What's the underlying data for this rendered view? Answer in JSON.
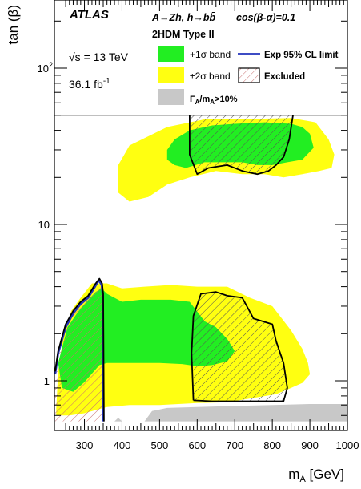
{
  "colors": {
    "band1": "#22ee22",
    "band2": "#ffff11",
    "width_region": "#c8c8c8",
    "expected_line": "#2233bb",
    "observed_line": "#000000",
    "excluded_hatch": "#c87070"
  },
  "chart_data": {
    "type": "area",
    "experiment": "ATLAS",
    "process": "A→Zh, h→bb̄",
    "process_bar": "b̄",
    "condition": "cos(β-α)=0.1",
    "model": "2HDM Type II",
    "energy": "√s = 13 TeV",
    "luminosity": "36.1 fb",
    "luminosity_exp": "-1",
    "xlabel": "m",
    "xlabel_sub": "A",
    "xlabel_unit": " [GeV]",
    "ylabel": "tan (β)",
    "xlim": [
      220,
      1000
    ],
    "ylim": [
      0.55,
      500
    ],
    "yscale": "log",
    "xticks": [
      300,
      400,
      500,
      600,
      700,
      800,
      900,
      1000
    ],
    "yticks": [
      {
        "value": 1,
        "label": "1"
      },
      {
        "value": 10,
        "label": "10"
      },
      {
        "value": 100,
        "label": "10",
        "exp": "2"
      }
    ],
    "legend": [
      {
        "key": "band1",
        "label": "+1σ band"
      },
      {
        "key": "band2",
        "label": "±2σ band"
      },
      {
        "key": "expected",
        "label": "Exp 95% CL limit"
      },
      {
        "key": "excluded",
        "label": "Excluded"
      },
      {
        "key": "width",
        "label": "Γ",
        "sub1": "A",
        "mid": "/m",
        "sub2": "A",
        "tail": ">10%"
      }
    ],
    "legend_box_top_tanb": 50,
    "series": [
      {
        "key": "band2",
        "regions": [
          [
            [
              225,
              0.66
            ],
            [
              230,
              1.15
            ],
            [
              245,
              2.0
            ],
            [
              265,
              2.8
            ],
            [
              290,
              3.4
            ],
            [
              320,
              4.2
            ],
            [
              345,
              4.2
            ],
            [
              360,
              4.2
            ],
            [
              400,
              3.9
            ],
            [
              460,
              4.0
            ],
            [
              530,
              4.1
            ],
            [
              600,
              4.0
            ],
            [
              680,
              4.0
            ],
            [
              740,
              3.4
            ],
            [
              800,
              3.0
            ],
            [
              850,
              2.1
            ],
            [
              880,
              1.6
            ],
            [
              895,
              1.3
            ],
            [
              900,
              1.1
            ],
            [
              880,
              0.97
            ],
            [
              850,
              0.9
            ],
            [
              810,
              0.82
            ],
            [
              740,
              0.77
            ],
            [
              680,
              0.73
            ],
            [
              600,
              0.72
            ],
            [
              500,
              0.7
            ],
            [
              420,
              0.7
            ],
            [
              360,
              0.68
            ],
            [
              340,
              0.66
            ],
            [
              300,
              0.62
            ],
            [
              260,
              0.6
            ],
            [
              225,
              0.6
            ]
          ],
          [
            [
              390,
              24
            ],
            [
              420,
              32
            ],
            [
              520,
              42
            ],
            [
              620,
              47
            ],
            [
              700,
              47
            ],
            [
              850,
              48
            ],
            [
              915,
              45
            ],
            [
              950,
              35
            ],
            [
              965,
              28
            ],
            [
              958,
              23
            ],
            [
              925,
              22
            ],
            [
              880,
              21
            ],
            [
              830,
              20
            ],
            [
              780,
              21
            ],
            [
              720,
              21
            ],
            [
              650,
              22
            ],
            [
              580,
              20
            ],
            [
              520,
              18
            ],
            [
              470,
              15
            ],
            [
              420,
              14
            ],
            [
              390,
              16
            ]
          ]
        ]
      },
      {
        "key": "band1",
        "regions": [
          [
            [
              230,
              1.3
            ],
            [
              255,
              2.2
            ],
            [
              280,
              2.7
            ],
            [
              305,
              3.2
            ],
            [
              330,
              3.7
            ],
            [
              345,
              3.9
            ],
            [
              360,
              3.6
            ],
            [
              400,
              3.2
            ],
            [
              450,
              3.3
            ],
            [
              530,
              3.3
            ],
            [
              580,
              3.2
            ],
            [
              620,
              2.4
            ],
            [
              650,
              2.2
            ],
            [
              680,
              1.85
            ],
            [
              700,
              1.55
            ],
            [
              680,
              1.33
            ],
            [
              640,
              1.26
            ],
            [
              600,
              1.24
            ],
            [
              560,
              1.28
            ],
            [
              500,
              1.3
            ],
            [
              420,
              1.3
            ],
            [
              360,
              1.3
            ],
            [
              340,
              1.26
            ],
            [
              300,
              0.98
            ],
            [
              270,
              0.85
            ],
            [
              240,
              0.9
            ]
          ],
          [
            [
              520,
              30
            ],
            [
              540,
              35
            ],
            [
              580,
              40
            ],
            [
              640,
              43
            ],
            [
              700,
              44
            ],
            [
              780,
              45
            ],
            [
              850,
              44
            ],
            [
              880,
              42
            ],
            [
              900,
              38
            ],
            [
              910,
              31
            ],
            [
              880,
              26
            ],
            [
              840,
              25
            ],
            [
              800,
              24
            ],
            [
              760,
              24
            ],
            [
              720,
              25
            ],
            [
              680,
              25
            ],
            [
              620,
              25
            ],
            [
              570,
              23
            ],
            [
              540,
              24
            ],
            [
              520,
              26
            ]
          ]
        ]
      },
      {
        "key": "width",
        "regions": [
          [
            [
              460,
              0.55
            ],
            [
              480,
              0.64
            ],
            [
              520,
              0.67
            ],
            [
              600,
              0.68
            ],
            [
              700,
              0.69
            ],
            [
              800,
              0.7
            ],
            [
              900,
              0.71
            ],
            [
              1000,
              0.71
            ],
            [
              1000,
              0.55
            ]
          ],
          [
            [
              380,
              0.55
            ],
            [
              390,
              0.58
            ],
            [
              400,
              0.55
            ]
          ]
        ]
      },
      {
        "key": "excluded",
        "regions": [
          [
            [
              222,
              0.55
            ],
            [
              222,
              1.15
            ],
            [
              230,
              1.55
            ],
            [
              250,
              2.3
            ],
            [
              270,
              2.8
            ],
            [
              290,
              3.2
            ],
            [
              310,
              3.5
            ],
            [
              330,
              4.2
            ],
            [
              340,
              4.5
            ],
            [
              347,
              4.2
            ],
            [
              350,
              3.6
            ],
            [
              352,
              0.55
            ]
          ],
          [
            [
              580,
              50
            ],
            [
              580,
              28
            ],
            [
              600,
              21
            ],
            [
              630,
              23
            ],
            [
              680,
              24
            ],
            [
              720,
              22
            ],
            [
              760,
              21
            ],
            [
              790,
              22
            ],
            [
              810,
              24
            ],
            [
              830,
              27
            ],
            [
              845,
              35
            ],
            [
              855,
              50
            ]
          ],
          [
            [
              590,
              0.75
            ],
            [
              585,
              1.5
            ],
            [
              590,
              2.6
            ],
            [
              610,
              3.6
            ],
            [
              650,
              3.7
            ],
            [
              680,
              3.5
            ],
            [
              720,
              3.4
            ],
            [
              750,
              2.5
            ],
            [
              800,
              2.3
            ],
            [
              810,
              1.8
            ],
            [
              830,
              1.3
            ],
            [
              840,
              0.9
            ],
            [
              830,
              0.74
            ],
            [
              720,
              0.74
            ],
            [
              640,
              0.74
            ]
          ]
        ]
      },
      {
        "key": "expected",
        "lines": [
          [
            [
              222,
              1.1
            ],
            [
              230,
              1.5
            ],
            [
              250,
              2.2
            ],
            [
              270,
              2.7
            ],
            [
              290,
              3.1
            ],
            [
              310,
              3.4
            ],
            [
              328,
              4.0
            ],
            [
              338,
              4.4
            ],
            [
              346,
              4.1
            ],
            [
              349,
              3.5
            ],
            [
              350,
              0.55
            ]
          ]
        ]
      },
      {
        "key": "observed",
        "lines": [
          [
            [
              222,
              1.15
            ],
            [
              230,
              1.55
            ],
            [
              250,
              2.3
            ],
            [
              270,
              2.8
            ],
            [
              290,
              3.2
            ],
            [
              310,
              3.5
            ],
            [
              330,
              4.2
            ],
            [
              340,
              4.5
            ],
            [
              347,
              4.2
            ],
            [
              350,
              3.6
            ],
            [
              352,
              0.55
            ]
          ],
          [
            [
              580,
              50
            ],
            [
              580,
              28
            ],
            [
              600,
              21
            ],
            [
              630,
              23
            ],
            [
              680,
              24
            ],
            [
              720,
              22
            ],
            [
              760,
              21
            ],
            [
              790,
              22
            ],
            [
              810,
              24
            ],
            [
              830,
              27
            ],
            [
              845,
              35
            ],
            [
              855,
              50
            ]
          ],
          [
            [
              590,
              0.75
            ],
            [
              585,
              1.5
            ],
            [
              590,
              2.6
            ],
            [
              610,
              3.6
            ],
            [
              650,
              3.7
            ],
            [
              680,
              3.5
            ],
            [
              720,
              3.4
            ],
            [
              750,
              2.5
            ],
            [
              800,
              2.3
            ],
            [
              810,
              1.8
            ],
            [
              830,
              1.3
            ],
            [
              840,
              0.9
            ],
            [
              830,
              0.74
            ],
            [
              720,
              0.74
            ],
            [
              640,
              0.74
            ],
            [
              590,
              0.75
            ]
          ]
        ]
      }
    ]
  }
}
